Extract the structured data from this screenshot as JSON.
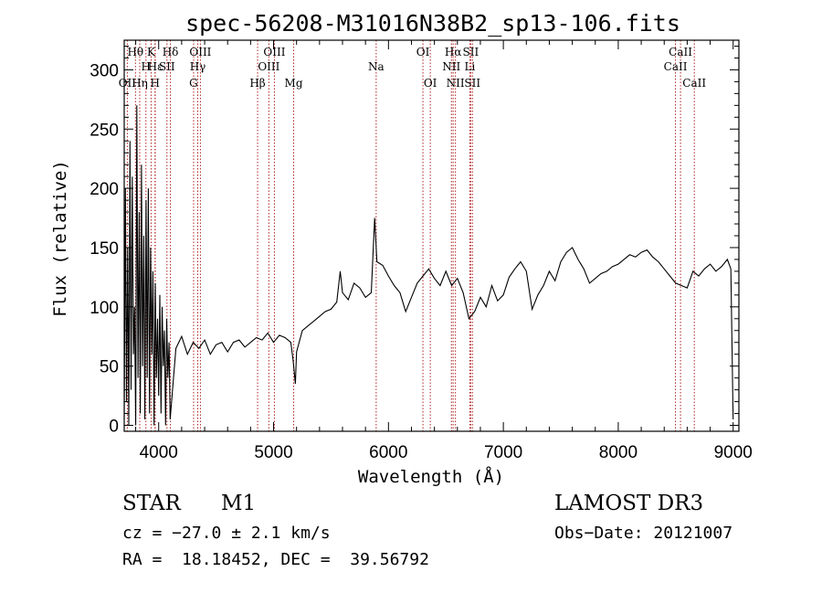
{
  "chart_data": {
    "type": "line",
    "title": "spec-56208-M31016N38B2_sp13-106.fits",
    "xlabel": "Wavelength (Å)",
    "ylabel": "Flux (relative)",
    "xlim": [
      3700,
      9050
    ],
    "ylim": [
      -5,
      325
    ],
    "x_ticks": [
      4000,
      5000,
      6000,
      7000,
      8000,
      9000
    ],
    "y_ticks": [
      0,
      50,
      100,
      150,
      200,
      250,
      300
    ],
    "y_tick_labels": [
      "0",
      "50",
      "100",
      "150",
      "200",
      "250",
      "300"
    ],
    "grid": false,
    "line_color": "#000000",
    "marker_color": "#b22222",
    "series": [
      {
        "name": "flux",
        "x": [
          3700,
          3710,
          3720,
          3730,
          3740,
          3750,
          3760,
          3770,
          3780,
          3790,
          3800,
          3810,
          3820,
          3830,
          3840,
          3850,
          3860,
          3870,
          3880,
          3890,
          3900,
          3910,
          3920,
          3930,
          3940,
          3950,
          3960,
          3970,
          3980,
          3990,
          4000,
          4010,
          4020,
          4030,
          4040,
          4050,
          4060,
          4070,
          4080,
          4090,
          4100,
          4150,
          4200,
          4250,
          4300,
          4350,
          4400,
          4450,
          4500,
          4550,
          4600,
          4650,
          4700,
          4750,
          4800,
          4850,
          4900,
          4950,
          5000,
          5050,
          5100,
          5150,
          5170,
          5190,
          5200,
          5250,
          5300,
          5350,
          5400,
          5450,
          5500,
          5550,
          5580,
          5600,
          5650,
          5700,
          5750,
          5800,
          5850,
          5880,
          5900,
          5950,
          6000,
          6050,
          6100,
          6150,
          6200,
          6250,
          6300,
          6350,
          6400,
          6450,
          6500,
          6550,
          6600,
          6650,
          6700,
          6750,
          6800,
          6850,
          6900,
          6950,
          7000,
          7050,
          7100,
          7150,
          7200,
          7250,
          7300,
          7350,
          7400,
          7450,
          7500,
          7550,
          7600,
          7650,
          7700,
          7750,
          7800,
          7850,
          7900,
          7950,
          8000,
          8050,
          8100,
          8150,
          8200,
          8250,
          8300,
          8350,
          8400,
          8450,
          8500,
          8550,
          8600,
          8650,
          8700,
          8750,
          8800,
          8850,
          8900,
          8950,
          8980,
          9000
        ],
        "values": [
          5,
          200,
          20,
          150,
          0,
          240,
          30,
          210,
          60,
          100,
          0,
          270,
          40,
          180,
          10,
          220,
          50,
          160,
          5,
          190,
          40,
          200,
          10,
          150,
          60,
          130,
          0,
          120,
          40,
          90,
          25,
          110,
          10,
          100,
          50,
          80,
          0,
          90,
          40,
          70,
          5,
          65,
          75,
          60,
          70,
          65,
          72,
          60,
          68,
          70,
          62,
          70,
          72,
          66,
          70,
          74,
          72,
          78,
          70,
          76,
          74,
          70,
          55,
          35,
          62,
          80,
          84,
          88,
          92,
          96,
          98,
          104,
          130,
          112,
          106,
          120,
          116,
          108,
          112,
          175,
          138,
          135,
          126,
          118,
          112,
          96,
          108,
          120,
          126,
          132,
          124,
          118,
          130,
          118,
          124,
          112,
          90,
          96,
          108,
          100,
          118,
          105,
          110,
          125,
          132,
          138,
          130,
          98,
          110,
          118,
          130,
          122,
          138,
          146,
          150,
          140,
          132,
          120,
          124,
          128,
          130,
          134,
          136,
          140,
          144,
          142,
          146,
          148,
          142,
          138,
          132,
          126,
          120,
          118,
          116,
          130,
          126,
          132,
          136,
          130,
          134,
          140,
          132,
          5
        ]
      }
    ],
    "spectral_lines": [
      {
        "name": "Hθ",
        "x": 3798,
        "row": 0
      },
      {
        "name": "OII",
        "x": 3727,
        "row": 2
      },
      {
        "name": "Hη",
        "x": 3835,
        "row": 2
      },
      {
        "name": "H",
        "x": 3889,
        "row": 1
      },
      {
        "name": "Hε",
        "x": 3970,
        "row": 1
      },
      {
        "name": "K",
        "x": 3934,
        "row": 0
      },
      {
        "name": "H",
        "x": 3968,
        "row": 2
      },
      {
        "name": "SII",
        "x": 4072,
        "row": 1
      },
      {
        "name": "Hδ",
        "x": 4102,
        "row": 0
      },
      {
        "name": "OIII",
        "x": 4363,
        "row": 0
      },
      {
        "name": "Hγ",
        "x": 4340,
        "row": 1
      },
      {
        "name": "G",
        "x": 4304,
        "row": 2
      },
      {
        "name": "Hβ",
        "x": 4861,
        "row": 2
      },
      {
        "name": "OIII",
        "x": 4959,
        "row": 1
      },
      {
        "name": "OIII",
        "x": 5007,
        "row": 0
      },
      {
        "name": "Mg",
        "x": 5175,
        "row": 2
      },
      {
        "name": "Na",
        "x": 5893,
        "row": 1
      },
      {
        "name": "OI",
        "x": 6300,
        "row": 0
      },
      {
        "name": "OI",
        "x": 6364,
        "row": 2
      },
      {
        "name": "NII",
        "x": 6548,
        "row": 1
      },
      {
        "name": "Hα",
        "x": 6563,
        "row": 0
      },
      {
        "name": "NII",
        "x": 6583,
        "row": 2
      },
      {
        "name": "SII",
        "x": 6716,
        "row": 0
      },
      {
        "name": "Li",
        "x": 6708,
        "row": 1
      },
      {
        "name": "SII",
        "x": 6731,
        "row": 2
      },
      {
        "name": "CaII",
        "x": 8498,
        "row": 1
      },
      {
        "name": "CaII",
        "x": 8542,
        "row": 0
      },
      {
        "name": "CaII",
        "x": 8662,
        "row": 2
      }
    ]
  },
  "info": {
    "object_class": "STAR",
    "subclass": "M1",
    "survey": "LAMOST DR3",
    "cz": "cz = −27.0 ± 2.1 km/s",
    "obs_date": "Obs−Date: 20121007",
    "coords": "RA =  18.18452, DEC =  39.56792"
  }
}
